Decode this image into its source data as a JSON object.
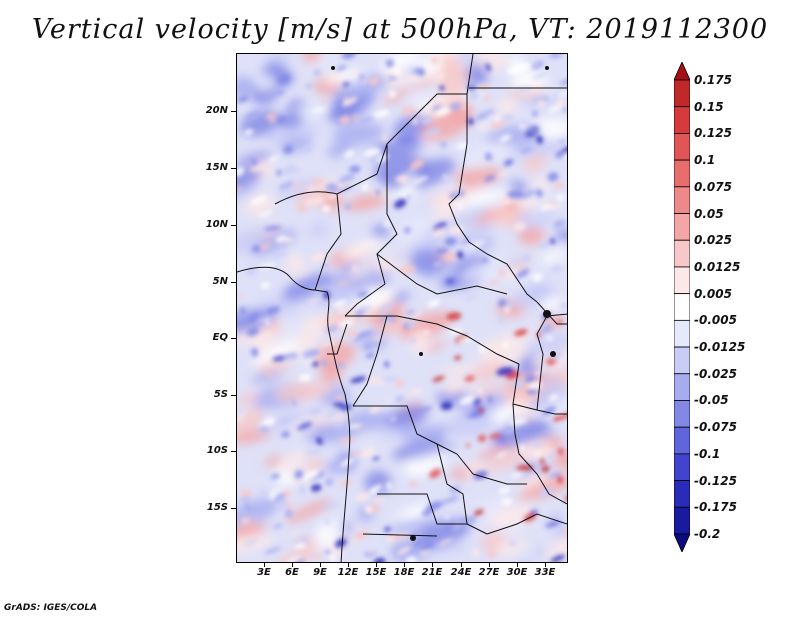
{
  "title": "Vertical velocity [m/s] at 500hPa, VT: 2019112300",
  "map": {
    "lat_labels": [
      "20N",
      "15N",
      "10N",
      "5N",
      "EQ",
      "5S",
      "10S",
      "15S"
    ],
    "lon_labels": [
      "3E",
      "6E",
      "9E",
      "12E",
      "15E",
      "18E",
      "21E",
      "24E",
      "27E",
      "30E",
      "33E"
    ]
  },
  "colorbar": {
    "labels": [
      "0.175",
      "0.15",
      "0.125",
      "0.1",
      "0.075",
      "0.05",
      "0.025",
      "0.0125",
      "0.005",
      "-0.005",
      "-0.0125",
      "-0.025",
      "-0.05",
      "-0.075",
      "-0.1",
      "-0.125",
      "-0.175",
      "-0.2"
    ],
    "colors": [
      "#a50f15",
      "#c0282a",
      "#d63a3a",
      "#e05555",
      "#e86d6d",
      "#ee8989",
      "#f4a5a5",
      "#f8c8c8",
      "#fce8e8",
      "#ffffff",
      "#e6e8fb",
      "#c8ccf6",
      "#a7acef",
      "#8388e6",
      "#6165db",
      "#4244cd",
      "#2a2bb8",
      "#1a1aa0",
      "#0b0b80"
    ]
  },
  "footer": "GrADS: IGES/COLA"
}
